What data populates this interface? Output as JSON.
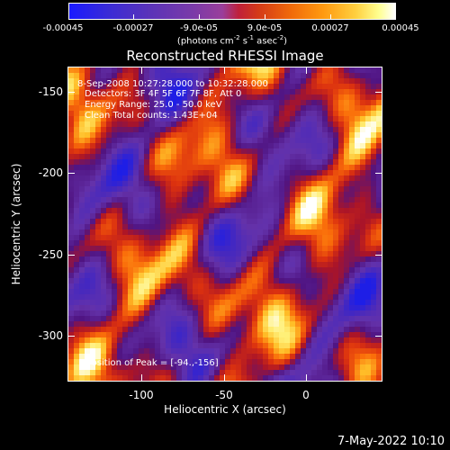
{
  "colorbar": {
    "ticks": [
      "-0.00045",
      "-0.00027",
      "-9.0e-05",
      "9.0e-05",
      "0.00027",
      "0.00045"
    ],
    "units_prefix": "(photons cm",
    "units_exp1": "-2",
    "units_mid": " s",
    "units_exp2": "-1",
    "units_mid2": " asec",
    "units_exp3": "-2",
    "units_suffix": ")"
  },
  "title": "Reconstructed RHESSI Image",
  "info": {
    "line1": "8-Sep-2008 10:27:28.000 to 10:32:28.000",
    "line2": "Detectors: 3F 4F 5F 6F 7F 8F, Att 0",
    "line3": "Energy Range: 25.0 - 50.0 keV",
    "line4": "Clean     Total counts: 1.43E+04",
    "peak": "Position of Peak = [-94.,-156]"
  },
  "axes": {
    "xlabel": "Heliocentric X (arcsec)",
    "ylabel": "Heliocentric Y (arcsec)",
    "xticks": [
      "-100",
      "-50",
      "0"
    ],
    "yticks": [
      "-150",
      "-200",
      "-250",
      "-300"
    ]
  },
  "timestamp": "7-May-2022 10:10"
}
